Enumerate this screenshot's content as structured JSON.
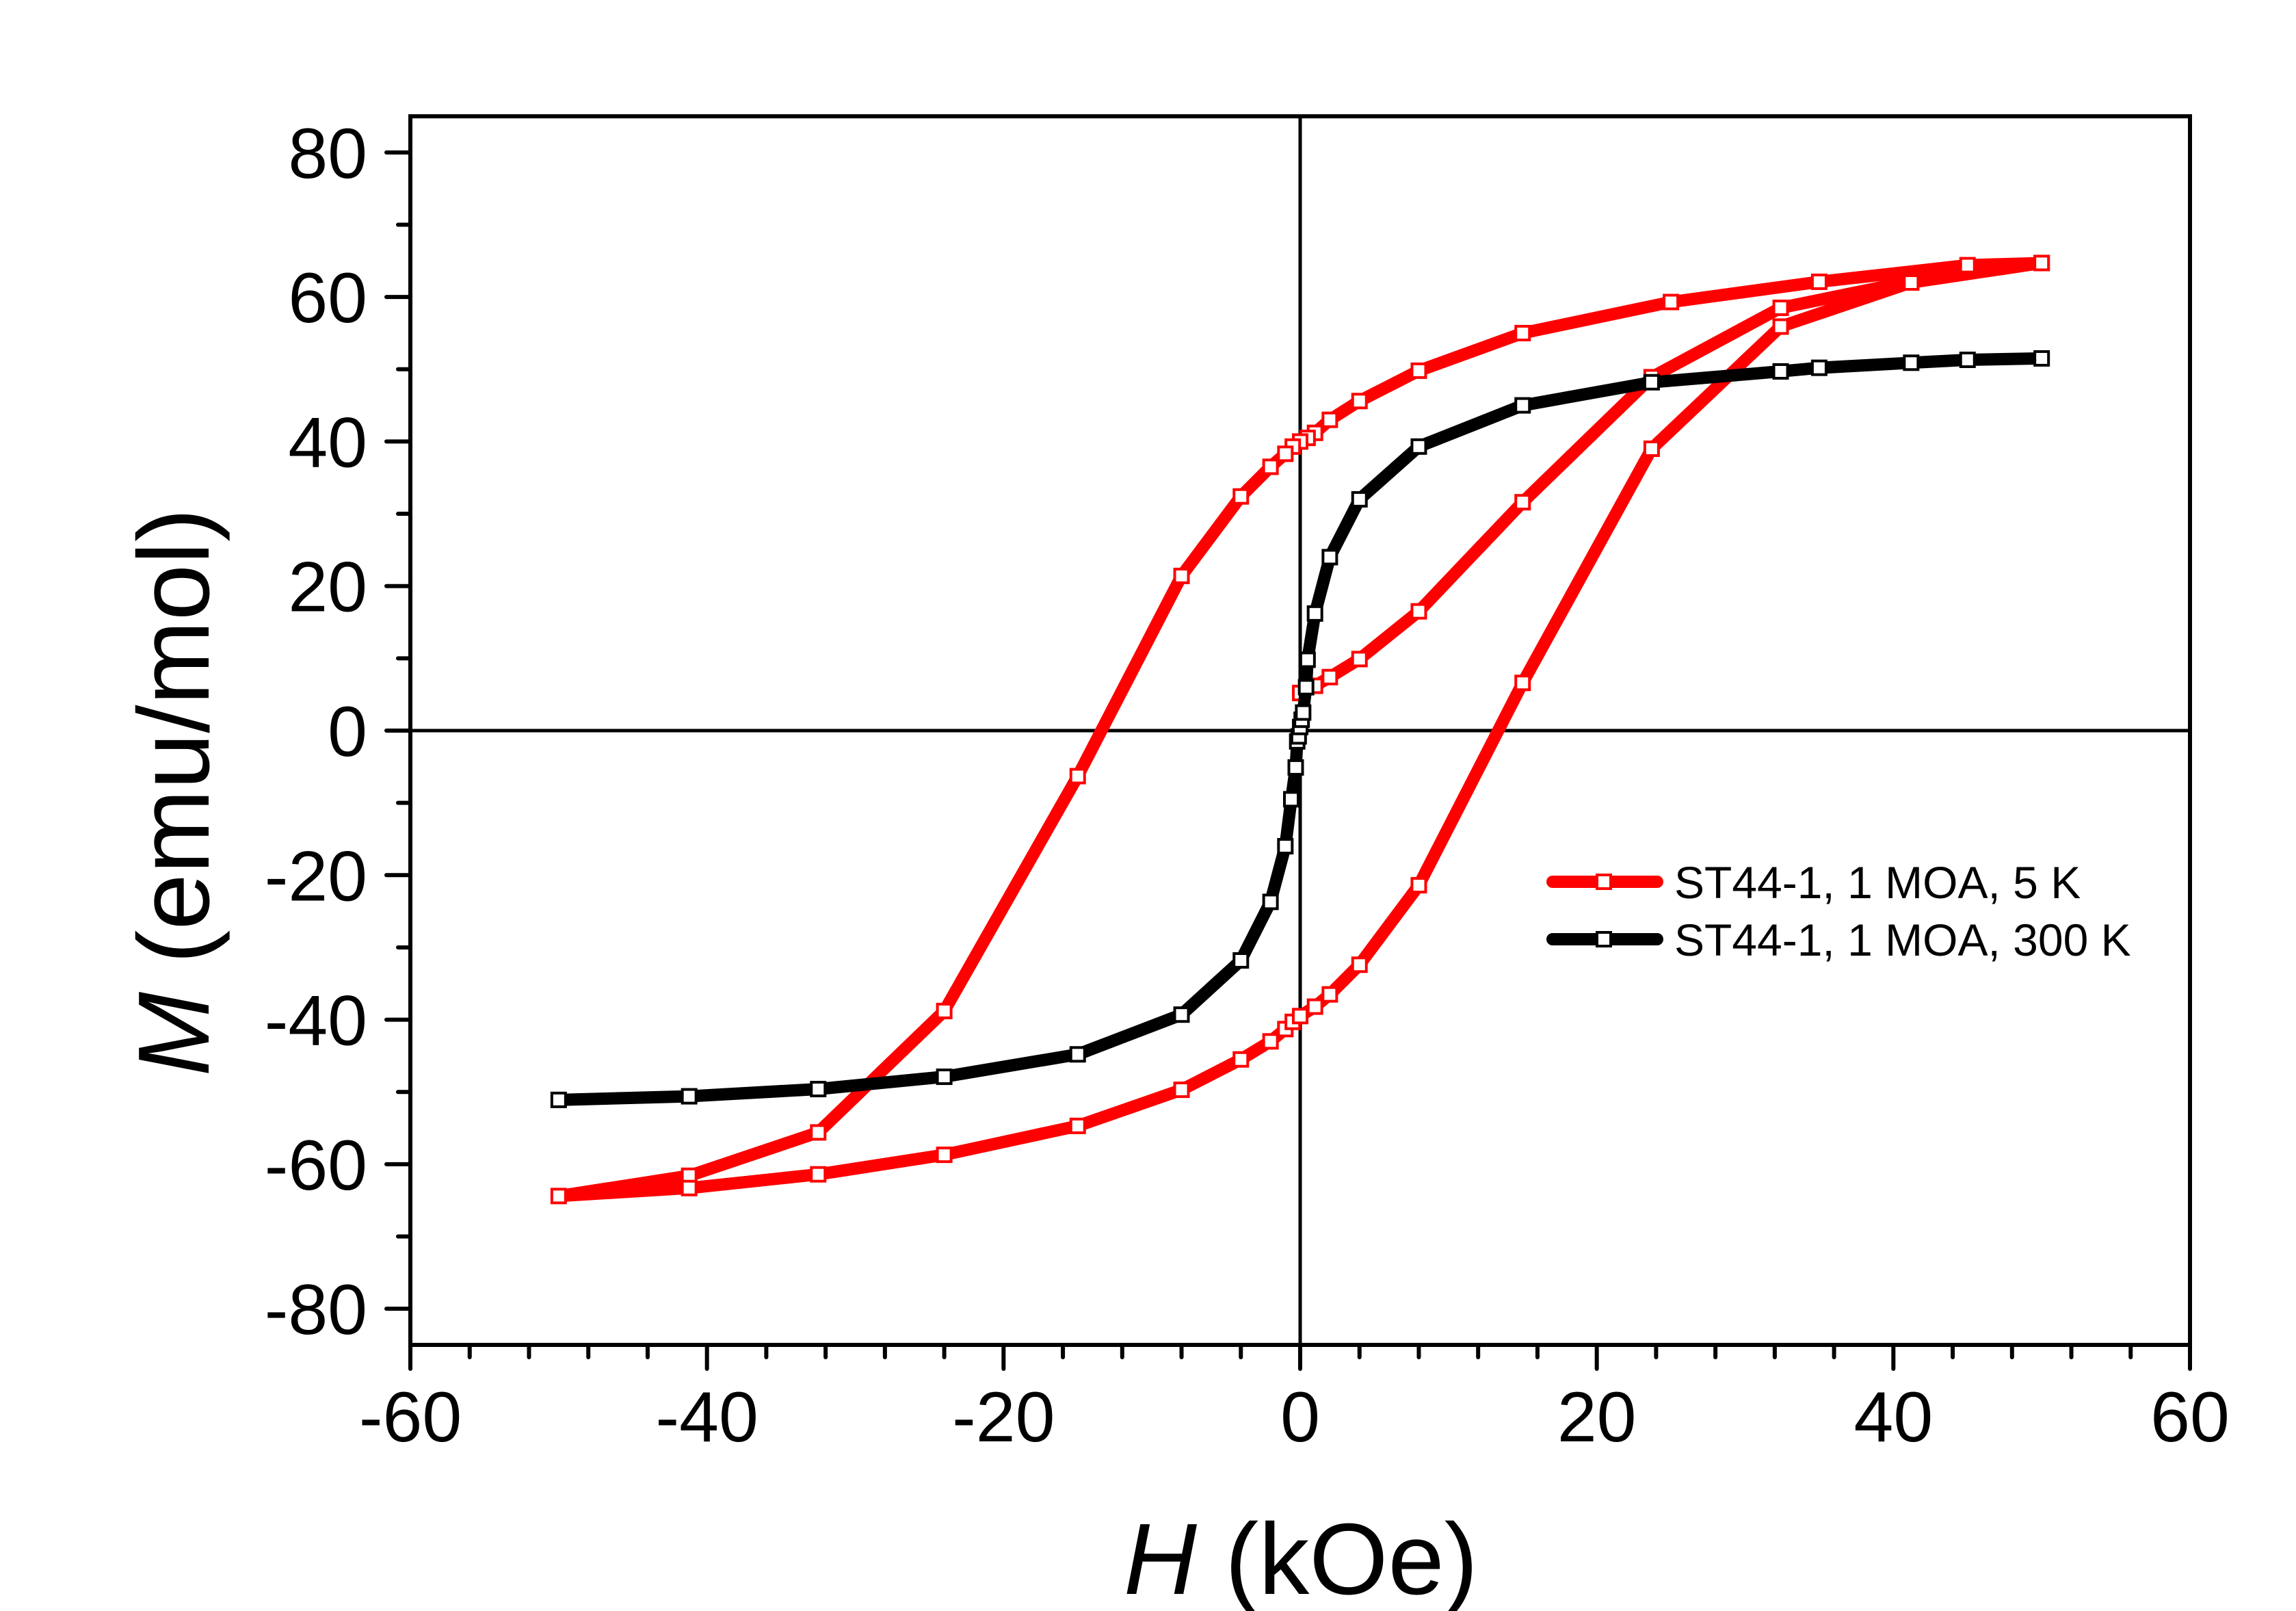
{
  "chart_data": {
    "type": "line",
    "title": "",
    "xlabel": {
      "symbol": "H",
      "unit": " (kOe)"
    },
    "ylabel": {
      "symbol": "M",
      "unit": " (emu/mol)"
    },
    "xlim": [
      -60,
      60
    ],
    "ylim": [
      -85,
      85
    ],
    "x_ticks": [
      -60,
      -40,
      -20,
      0,
      20,
      40,
      60
    ],
    "x_tick_labels": [
      "-60",
      "-40",
      "-20",
      "0",
      "20",
      "40",
      "60"
    ],
    "x_minor_step": 4,
    "y_ticks": [
      -80,
      -60,
      -40,
      -20,
      0,
      20,
      40,
      60,
      80
    ],
    "y_tick_labels": [
      "-80",
      "-60",
      "-40",
      "-20",
      "0",
      "20",
      "40",
      "60",
      "80"
    ],
    "y_minor_step": 10,
    "grid": false,
    "zero_lines": true,
    "legend_position": "right",
    "series": [
      {
        "name": "ST44-1, 1 MOA, 5 K",
        "color": "#ff0000",
        "marker": "open-square",
        "x": [
          0,
          1,
          2,
          4,
          8,
          15,
          23.7,
          32.4,
          41.2,
          50,
          45,
          35,
          25,
          15,
          8,
          4,
          2,
          1,
          0.5,
          0,
          -0.5,
          -1,
          -2,
          -4,
          -8,
          -15,
          -24,
          -32.5,
          -41.2,
          -50,
          -41.2,
          -32.5,
          -24,
          -15,
          -8,
          -4,
          -2,
          -1,
          -0.5,
          0,
          1,
          2,
          4,
          8,
          15,
          23.7,
          32.4,
          41.2,
          50
        ],
        "y": [
          5.2,
          6.2,
          7.4,
          9.9,
          16.5,
          31.6,
          48.9,
          58.5,
          62.2,
          64.7,
          64.4,
          62.1,
          59.3,
          55.0,
          49.8,
          45.6,
          43.0,
          41.2,
          40.5,
          40.0,
          39.3,
          38.3,
          36.5,
          32.4,
          21.4,
          -6.3,
          -38.8,
          -55.6,
          -61.6,
          -64.4,
          -63.3,
          -61.4,
          -58.7,
          -54.7,
          -49.7,
          -45.5,
          -43.0,
          -41.3,
          -40.3,
          -39.5,
          -38.2,
          -36.5,
          -32.4,
          -21.4,
          6.6,
          39.0,
          55.9,
          62.0,
          64.7
        ]
      },
      {
        "name": "ST44-1, 1 MOA, 300 K",
        "color": "#000000",
        "marker": "open-square",
        "x": [
          -50,
          -41.2,
          -32.5,
          -24,
          -15,
          -8,
          -4,
          -2,
          -1,
          -0.6,
          -0.3,
          -0.2,
          -0.1,
          0,
          0.1,
          0.2,
          0.4,
          0.5,
          1,
          2,
          4,
          8,
          15,
          23.7,
          32.4,
          35,
          41.2,
          45,
          50
        ],
        "y": [
          -51.1,
          -50.6,
          -49.6,
          -47.9,
          -44.8,
          -39.3,
          -31.8,
          -23.7,
          -16.0,
          -9.5,
          -5.1,
          -1.5,
          -0.8,
          0.5,
          1.5,
          2.5,
          6.0,
          9.8,
          16.2,
          24.0,
          32.0,
          39.3,
          45.0,
          48.2,
          49.7,
          50.2,
          50.9,
          51.3,
          51.5
        ]
      }
    ]
  }
}
